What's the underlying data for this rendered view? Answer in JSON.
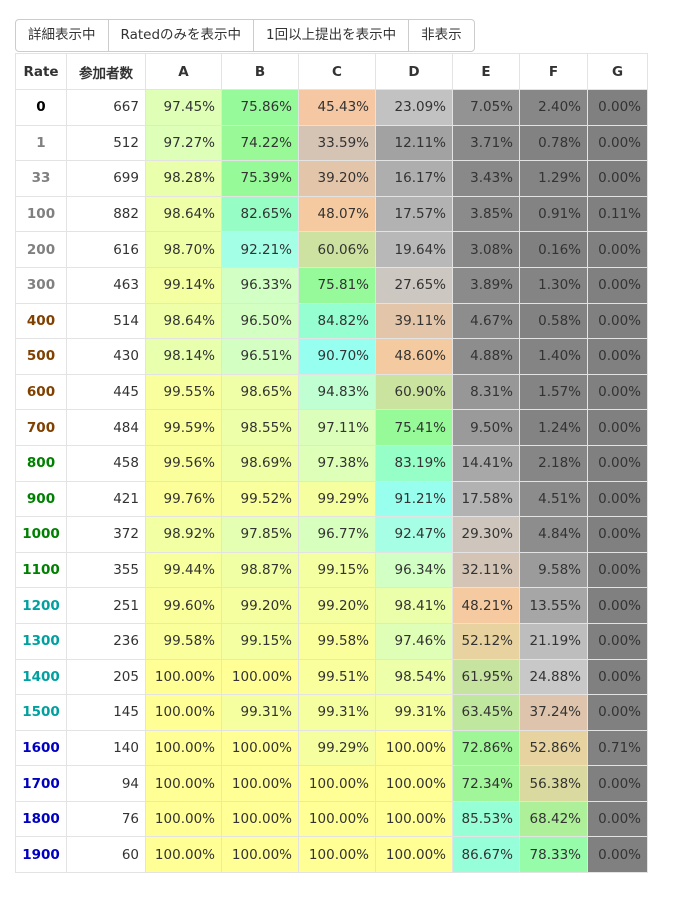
{
  "buttons": [
    "詳細表示中",
    "Ratedのみを表示中",
    "1回以上提出を表示中",
    "非表示"
  ],
  "table": {
    "header": [
      "Rate",
      "参加者数",
      "A",
      "B",
      "C",
      "D",
      "E",
      "F",
      "G"
    ],
    "rows": [
      [
        "0",
        "667",
        "97.45%",
        "75.86%",
        "45.43%",
        "23.09%",
        "7.05%",
        "2.40%",
        "0.00%"
      ],
      [
        "1",
        "512",
        "97.27%",
        "74.22%",
        "33.59%",
        "12.11%",
        "3.71%",
        "0.78%",
        "0.00%"
      ],
      [
        "33",
        "699",
        "98.28%",
        "75.39%",
        "39.20%",
        "16.17%",
        "3.43%",
        "1.29%",
        "0.00%"
      ],
      [
        "100",
        "882",
        "98.64%",
        "82.65%",
        "48.07%",
        "17.57%",
        "3.85%",
        "0.91%",
        "0.11%"
      ],
      [
        "200",
        "616",
        "98.70%",
        "92.21%",
        "60.06%",
        "19.64%",
        "3.08%",
        "0.16%",
        "0.00%"
      ],
      [
        "300",
        "463",
        "99.14%",
        "96.33%",
        "75.81%",
        "27.65%",
        "3.89%",
        "1.30%",
        "0.00%"
      ],
      [
        "400",
        "514",
        "98.64%",
        "96.50%",
        "84.82%",
        "39.11%",
        "4.67%",
        "0.58%",
        "0.00%"
      ],
      [
        "500",
        "430",
        "98.14%",
        "96.51%",
        "90.70%",
        "48.60%",
        "4.88%",
        "1.40%",
        "0.00%"
      ],
      [
        "600",
        "445",
        "99.55%",
        "98.65%",
        "94.83%",
        "60.90%",
        "8.31%",
        "1.57%",
        "0.00%"
      ],
      [
        "700",
        "484",
        "99.59%",
        "98.55%",
        "97.11%",
        "75.41%",
        "9.50%",
        "1.24%",
        "0.00%"
      ],
      [
        "800",
        "458",
        "99.56%",
        "98.69%",
        "97.38%",
        "83.19%",
        "14.41%",
        "2.18%",
        "0.00%"
      ],
      [
        "900",
        "421",
        "99.76%",
        "99.52%",
        "99.29%",
        "91.21%",
        "17.58%",
        "4.51%",
        "0.00%"
      ],
      [
        "1000",
        "372",
        "98.92%",
        "97.85%",
        "96.77%",
        "92.47%",
        "29.30%",
        "4.84%",
        "0.00%"
      ],
      [
        "1100",
        "355",
        "99.44%",
        "98.87%",
        "99.15%",
        "96.34%",
        "32.11%",
        "9.58%",
        "0.00%"
      ],
      [
        "1200",
        "251",
        "99.60%",
        "99.20%",
        "99.20%",
        "98.41%",
        "48.21%",
        "13.55%",
        "0.00%"
      ],
      [
        "1300",
        "236",
        "99.58%",
        "99.15%",
        "99.58%",
        "97.46%",
        "52.12%",
        "21.19%",
        "0.00%"
      ],
      [
        "1400",
        "205",
        "100.00%",
        "100.00%",
        "99.51%",
        "98.54%",
        "61.95%",
        "24.88%",
        "0.00%"
      ],
      [
        "1500",
        "145",
        "100.00%",
        "99.31%",
        "99.31%",
        "99.31%",
        "63.45%",
        "37.24%",
        "0.00%"
      ],
      [
        "1600",
        "140",
        "100.00%",
        "100.00%",
        "99.29%",
        "100.00%",
        "72.86%",
        "52.86%",
        "0.71%"
      ],
      [
        "1700",
        "94",
        "100.00%",
        "100.00%",
        "100.00%",
        "100.00%",
        "72.34%",
        "56.38%",
        "0.00%"
      ],
      [
        "1800",
        "76",
        "100.00%",
        "100.00%",
        "100.00%",
        "100.00%",
        "85.53%",
        "68.42%",
        "0.00%"
      ],
      [
        "1900",
        "60",
        "100.00%",
        "100.00%",
        "100.00%",
        "100.00%",
        "86.67%",
        "78.33%",
        "0.00%"
      ]
    ]
  }
}
